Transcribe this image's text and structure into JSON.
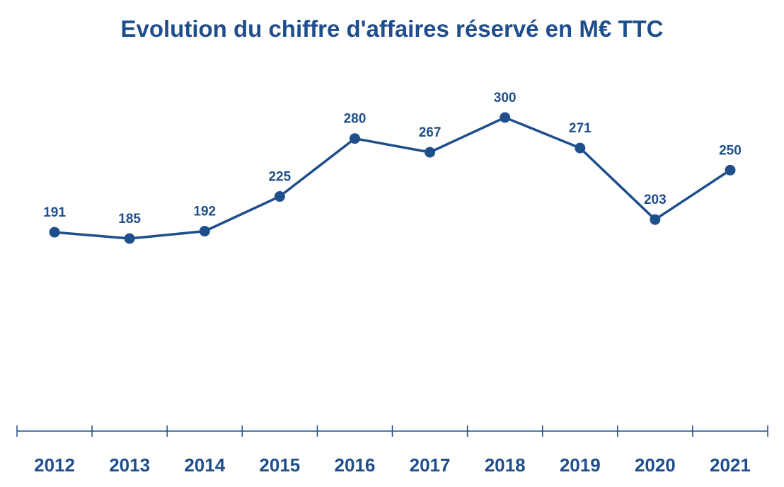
{
  "chart_data": {
    "type": "line",
    "title": "Evolution du chiffre d'affaires réservé en M€ TTC",
    "xlabel": "",
    "ylabel": "",
    "categories": [
      "2012",
      "2013",
      "2014",
      "2015",
      "2016",
      "2017",
      "2018",
      "2019",
      "2020",
      "2021"
    ],
    "series": [
      {
        "values": [
          191,
          185,
          192,
          225,
          280,
          267,
          300,
          271,
          203,
          250
        ]
      }
    ],
    "ylim": [
      0,
      400
    ],
    "grid": false,
    "legend": "none",
    "color": "#1f4e8c"
  }
}
